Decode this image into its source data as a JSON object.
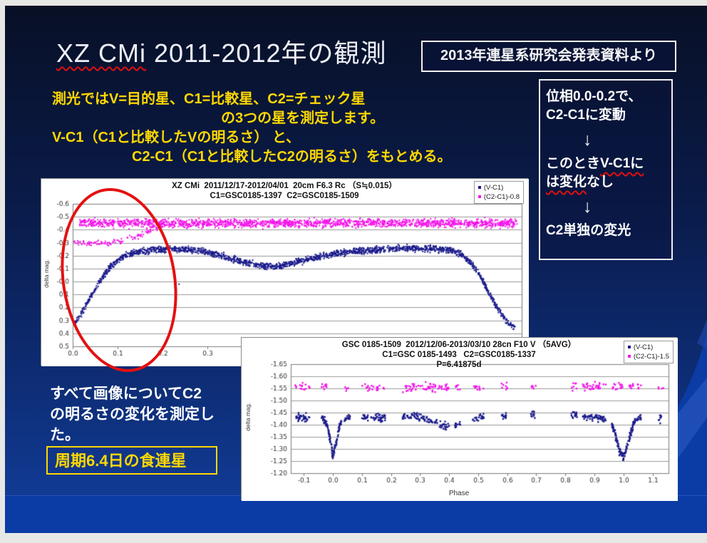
{
  "slide": {
    "title": {
      "underlined": "XZ CMi",
      "rest": "  2011-2012年の観測"
    },
    "source_note": "2013年連星系研究会発表資料より",
    "intro": {
      "line1": "測光ではV=目的星、C1=比較星、C2=チェック星",
      "line2": "の3つの星を測定します。",
      "line3": "V-C1（C1と比較したVの明るさ） と、",
      "line4": "C2-C1（C1と比較したC2の明るさ）をもとめる。"
    },
    "flow_box": {
      "s1a": "位相0.0-0.2で、",
      "s1b": "C2-C1に変動",
      "arrow": "↓",
      "s2a": "このとき",
      "s2b": "V-C1に",
      "s2c": "は変化",
      "s2d": "なし",
      "s3": "C2単独の変光"
    },
    "note": {
      "line1": "すべて画像についてC2",
      "line2": "の明るさの変化を測定し",
      "line3": "た。"
    },
    "conclusion": "周期6.4日の食連星"
  },
  "colors": {
    "accent_yellow": "#ffd800",
    "squiggle_red": "#e01010",
    "ellipse_red": "#e41010",
    "footer_blue": "#0b3ba5",
    "series_blue": "#1b1b8c",
    "series_magenta": "#f414ea"
  },
  "chart_data": [
    {
      "type": "scatter",
      "title": "XZ CMi  2011/12/17-2012/04/01  20cm F6.3 Rc （S≒0.015）",
      "subtitle": "C1=GSC0185-1397  C2=GSC0185-1509",
      "ylabel": "delta mag.",
      "xlabel": "",
      "xlim": [
        0.0,
        1.0
      ],
      "ylim": [
        -0.6,
        0.5
      ],
      "xtick": {
        "start": 0.0,
        "end": 1.0,
        "step": 0.1,
        "decimals": 1
      },
      "ytick": {
        "step": 0.1,
        "decimals": 1
      },
      "grid": "horizontal",
      "legend": [
        {
          "label": "(V-C1)",
          "color": "#1b1b8c"
        },
        {
          "label": "(C2-C1)-0.8",
          "color": "#f414ea"
        }
      ],
      "series": [
        {
          "name": "(V-C1)",
          "color": "#1b1b8c",
          "n": 1900,
          "jitter": 0.012,
          "clustered": false,
          "keypoints": [
            [
              0.0,
              0.33
            ],
            [
              0.008,
              0.31
            ],
            [
              0.02,
              0.24
            ],
            [
              0.04,
              0.12
            ],
            [
              0.06,
              0.0
            ],
            [
              0.08,
              -0.1
            ],
            [
              0.1,
              -0.165
            ],
            [
              0.12,
              -0.205
            ],
            [
              0.15,
              -0.23
            ],
            [
              0.18,
              -0.245
            ],
            [
              0.22,
              -0.252
            ],
            [
              0.26,
              -0.246
            ],
            [
              0.3,
              -0.228
            ],
            [
              0.34,
              -0.19
            ],
            [
              0.38,
              -0.15
            ],
            [
              0.42,
              -0.122
            ],
            [
              0.445,
              -0.112
            ],
            [
              0.47,
              -0.125
            ],
            [
              0.5,
              -0.152
            ],
            [
              0.54,
              -0.186
            ],
            [
              0.58,
              -0.212
            ],
            [
              0.64,
              -0.238
            ],
            [
              0.7,
              -0.252
            ],
            [
              0.75,
              -0.258
            ],
            [
              0.8,
              -0.252
            ],
            [
              0.83,
              -0.246
            ],
            [
              0.85,
              -0.232
            ],
            [
              0.87,
              -0.2
            ],
            [
              0.89,
              -0.13
            ],
            [
              0.905,
              -0.06
            ],
            [
              0.92,
              0.04
            ],
            [
              0.935,
              0.14
            ],
            [
              0.95,
              0.23
            ],
            [
              0.965,
              0.3
            ],
            [
              0.978,
              0.34
            ],
            [
              0.985,
              0.35
            ]
          ]
        },
        {
          "name": "(C2-C1)-0.8",
          "color": "#f414ea",
          "n": 1700,
          "jitter": 0.016,
          "clustered": false,
          "keypoints": [
            [
              0.015,
              -0.452
            ],
            [
              0.2,
              -0.45
            ],
            [
              0.5,
              -0.449
            ],
            [
              0.8,
              -0.452
            ],
            [
              0.99,
              -0.45
            ]
          ]
        },
        {
          "name": "C2-C1 anomaly (phase 0.0-0.2)",
          "color": "#f414ea",
          "n": 130,
          "jitter": 0.012,
          "clustered": false,
          "keypoints": [
            [
              0.0,
              -0.302
            ],
            [
              0.04,
              -0.299
            ],
            [
              0.08,
              -0.296
            ],
            [
              0.11,
              -0.312
            ],
            [
              0.135,
              -0.34
            ],
            [
              0.16,
              -0.375
            ],
            [
              0.185,
              -0.415
            ],
            [
              0.205,
              -0.44
            ]
          ]
        },
        {
          "name": "stray point",
          "color": "#1b1b8c",
          "n": 1,
          "jitter": 0.0,
          "clustered": false,
          "keypoints": [
            [
              0.236,
              0.02
            ],
            [
              0.237,
              0.02
            ]
          ]
        }
      ]
    },
    {
      "type": "scatter",
      "title": "GSC 0185-1509  2012/12/06-2013/03/10 28cn F10 V （5AVG）",
      "subtitle": "C1=GSC 0185-1493   C2=GSC0185-1337",
      "subtitle2": "P=6.41875d",
      "ylabel": "delta mag.",
      "xlabel": "Phase",
      "xlim": [
        -0.145,
        1.155
      ],
      "ylim": [
        -1.65,
        -1.2
      ],
      "xtick": {
        "start": -0.1,
        "end": 1.1,
        "step": 0.1,
        "decimals": 1
      },
      "ytick": {
        "step": 0.05,
        "decimals": 2
      },
      "grid": "horizontal",
      "legend": [
        {
          "label": "(V-C1)",
          "color": "#1b1b8c"
        },
        {
          "label": "(C2-C1)-1.5",
          "color": "#f414ea"
        }
      ],
      "series": [
        {
          "name": "(V-C1)",
          "color": "#1b1b8c",
          "n": 1000,
          "jitter": 0.0075,
          "clustered": true,
          "keypoints": [
            [
              -0.13,
              -1.43
            ],
            [
              -0.05,
              -1.432
            ],
            [
              -0.03,
              -1.424
            ],
            [
              -0.015,
              -1.39
            ],
            [
              0.0,
              -1.268
            ],
            [
              0.012,
              -1.32
            ],
            [
              0.03,
              -1.41
            ],
            [
              0.05,
              -1.43
            ],
            [
              0.15,
              -1.43
            ],
            [
              0.22,
              -1.428
            ],
            [
              0.28,
              -1.437
            ],
            [
              0.33,
              -1.42
            ],
            [
              0.37,
              -1.402
            ],
            [
              0.4,
              -1.386
            ],
            [
              0.43,
              -1.402
            ],
            [
              0.46,
              -1.424
            ],
            [
              0.52,
              -1.43
            ],
            [
              0.6,
              -1.436
            ],
            [
              0.68,
              -1.44
            ],
            [
              0.76,
              -1.447
            ],
            [
              0.8,
              -1.45
            ],
            [
              0.84,
              -1.44
            ],
            [
              0.88,
              -1.432
            ],
            [
              0.93,
              -1.427
            ],
            [
              0.955,
              -1.42
            ],
            [
              0.97,
              -1.37
            ],
            [
              0.985,
              -1.29
            ],
            [
              1.0,
              -1.266
            ],
            [
              1.012,
              -1.3
            ],
            [
              1.028,
              -1.37
            ],
            [
              1.042,
              -1.42
            ],
            [
              1.06,
              -1.43
            ],
            [
              1.13,
              -1.427
            ]
          ]
        },
        {
          "name": "primary eclipse phase 0.0",
          "color": "#1b1b8c",
          "n": 80,
          "jitter": 0.007,
          "clustered": false,
          "keypoints": [
            [
              -0.02,
              -1.4
            ],
            [
              -0.008,
              -1.33
            ],
            [
              0.0,
              -1.268
            ],
            [
              0.008,
              -1.31
            ],
            [
              0.02,
              -1.38
            ],
            [
              0.03,
              -1.415
            ]
          ]
        },
        {
          "name": "primary eclipse phase 1.0",
          "color": "#1b1b8c",
          "n": 90,
          "jitter": 0.007,
          "clustered": false,
          "keypoints": [
            [
              0.958,
              -1.41
            ],
            [
              0.972,
              -1.355
            ],
            [
              0.986,
              -1.29
            ],
            [
              1.0,
              -1.266
            ],
            [
              1.012,
              -1.31
            ],
            [
              1.026,
              -1.375
            ],
            [
              1.04,
              -1.415
            ]
          ]
        },
        {
          "name": "(C2-C1)-1.5",
          "color": "#f414ea",
          "n": 520,
          "jitter": 0.009,
          "clustered": true,
          "keypoints": [
            [
              -0.13,
              -1.557
            ],
            [
              0.2,
              -1.553
            ],
            [
              0.5,
              -1.556
            ],
            [
              0.8,
              -1.558
            ],
            [
              1.14,
              -1.555
            ]
          ]
        }
      ]
    }
  ]
}
